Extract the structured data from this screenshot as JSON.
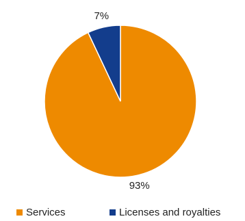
{
  "chart_data": {
    "type": "pie",
    "title": "",
    "categories": [
      "Services",
      "Licenses and royalties"
    ],
    "values": [
      93,
      7
    ],
    "data_labels": [
      "93%",
      "7%"
    ],
    "colors": [
      "#EE8A00",
      "#133D8C"
    ],
    "legend_position": "bottom",
    "start": "top, clockwise from the 7% slice on the left of 12 o'clock"
  },
  "legend": {
    "items": [
      {
        "label": "Services",
        "color": "#EE8A00"
      },
      {
        "label": "Licenses and royalties",
        "color": "#133D8C"
      }
    ]
  }
}
